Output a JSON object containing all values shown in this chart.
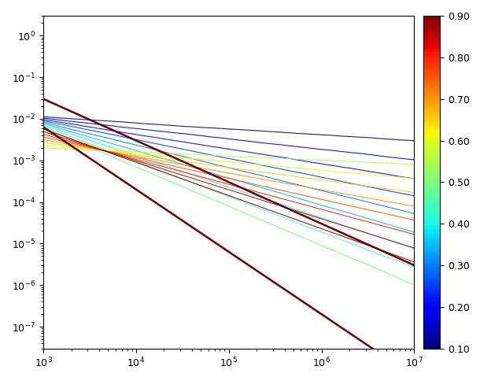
{
  "x_min": 1000,
  "x_max": 10000000,
  "y_min": 3e-08,
  "y_max": 3.0,
  "colormap": "jet",
  "cbar_min": 0.1,
  "cbar_max": 0.9,
  "alphas": [
    0.1,
    0.15,
    0.2,
    0.25,
    0.3,
    0.35,
    0.4,
    0.45,
    0.5,
    0.55,
    0.6,
    0.65,
    0.7,
    0.75,
    0.8,
    0.85,
    0.9
  ],
  "n_points": 2000,
  "seed": 42,
  "ref_slope1": 1.0,
  "ref_slope2": 1.5,
  "ref_C1": 30.0,
  "ref_C2": 200.0
}
